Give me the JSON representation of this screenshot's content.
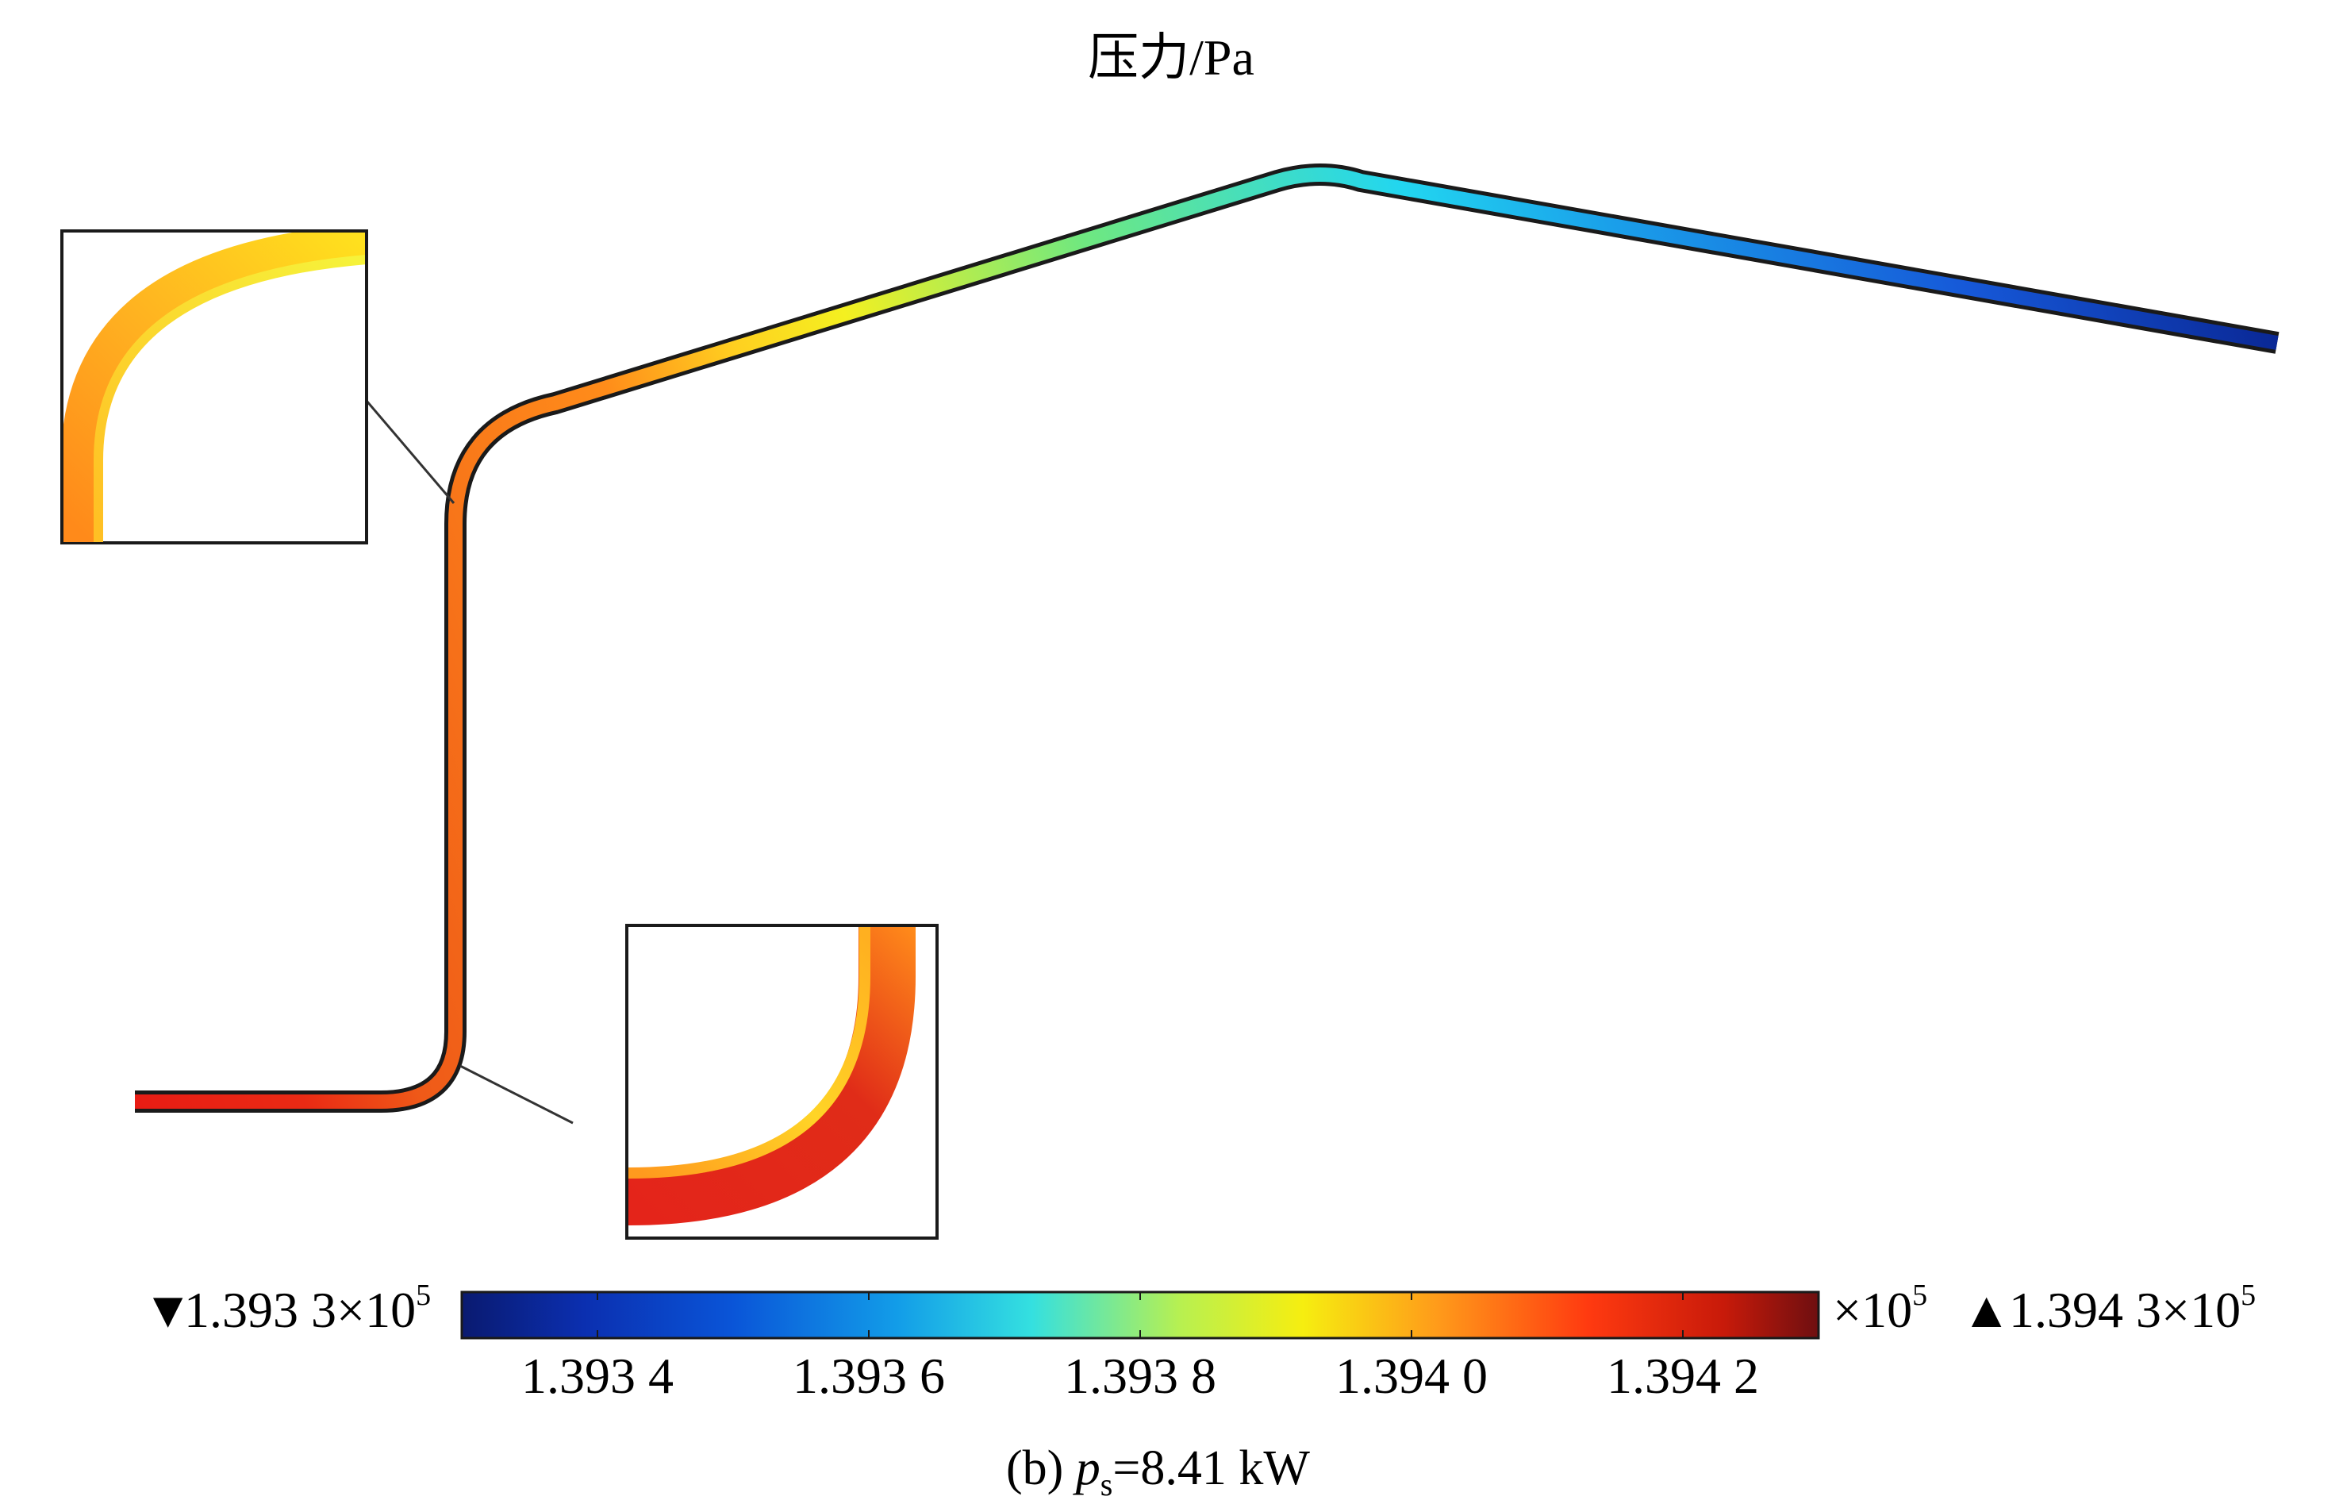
{
  "title": "压力/Pa",
  "colorbar": {
    "min_label": "1.393 3×10",
    "min_exp": "5",
    "max_label": "1.394 3×10",
    "max_exp": "5",
    "multiplier_label": "×10",
    "multiplier_exp": "5",
    "ticks": [
      "1.393 4",
      "1.393 6",
      "1.393 8",
      "1.394 0",
      "1.394 2"
    ],
    "min_value": 1.3933,
    "max_value": 1.3943,
    "tick_values": [
      1.3934,
      1.3936,
      1.3938,
      1.394,
      1.3942
    ],
    "colormap": [
      "#0a1a70",
      "#0047c8",
      "#12a9e8",
      "#34e0e0",
      "#8af070",
      "#f0f000",
      "#ff9a1a",
      "#ff3a10",
      "#d81a0a",
      "#7a1010"
    ]
  },
  "caption": {
    "prefix": "(b) ",
    "symbol": "p",
    "subscript": "s",
    "suffix": "=8.41 kW"
  },
  "markers": {
    "min_marker": "▼",
    "max_marker": "▲"
  }
}
